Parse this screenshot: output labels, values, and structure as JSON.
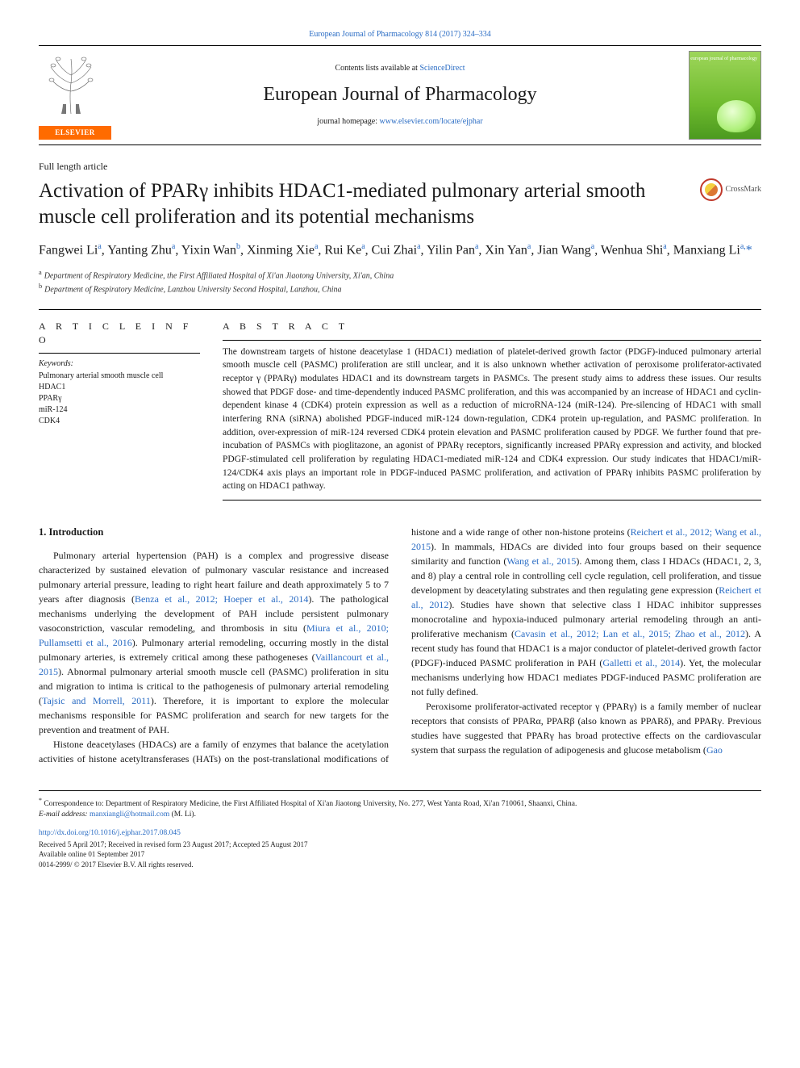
{
  "top_link": {
    "text": "European Journal of Pharmacology 814 (2017) 324–334",
    "href": "#"
  },
  "header": {
    "publisher_label": "ELSEVIER",
    "contents_line_pre": "Contents lists available at ",
    "contents_line_link": "ScienceDirect",
    "journal_name": "European Journal of Pharmacology",
    "homepage_pre": "journal homepage: ",
    "homepage_link": "www.elsevier.com/locate/ejphar",
    "cover_label": "european journal of\npharmacology"
  },
  "article": {
    "section_type": "Full length article",
    "title": "Activation of PPARγ inhibits HDAC1-mediated pulmonary arterial smooth muscle cell proliferation and its potential mechanisms",
    "crossmark_label": "CrossMark",
    "authors_html": "Fangwei Li<sup>a</sup>, Yanting Zhu<sup>a</sup>, Yixin Wan<sup>b</sup>, Xinming Xie<sup>a</sup>, Rui Ke<sup>a</sup>, Cui Zhai<sup>a</sup>, Yilin Pan<sup>a</sup>, Xin Yan<sup>a</sup>, Jian Wang<sup>a</sup>, Wenhua Shi<sup>a</sup>, Manxiang Li<sup>a,</sup><span class='corr'>*</span>",
    "affiliations": [
      {
        "sup": "a",
        "text": "Department of Respiratory Medicine, the First Affiliated Hospital of Xi'an Jiaotong University, Xi'an, China"
      },
      {
        "sup": "b",
        "text": "Department of Respiratory Medicine, Lanzhou University Second Hospital, Lanzhou, China"
      }
    ]
  },
  "info": {
    "heading": "A R T I C L E   I N F O",
    "keywords_label": "Keywords:",
    "keywords": [
      "Pulmonary arterial smooth muscle cell",
      "HDAC1",
      "PPARγ",
      "miR-124",
      "CDK4"
    ]
  },
  "abstract": {
    "heading": "A B S T R A C T",
    "text": "The downstream targets of histone deacetylase 1 (HDAC1) mediation of platelet-derived growth factor (PDGF)-induced pulmonary arterial smooth muscle cell (PASMC) proliferation are still unclear, and it is also unknown whether activation of peroxisome proliferator-activated receptor γ (PPARγ) modulates HDAC1 and its downstream targets in PASMCs. The present study aims to address these issues. Our results showed that PDGF dose- and time-dependently induced PASMC proliferation, and this was accompanied by an increase of HDAC1 and cyclin-dependent kinase 4 (CDK4) protein expression as well as a reduction of microRNA-124 (miR-124). Pre-silencing of HDAC1 with small interfering RNA (siRNA) abolished PDGF-induced miR-124 down-regulation, CDK4 protein up-regulation, and PASMC proliferation. In addition, over-expression of miR-124 reversed CDK4 protein elevation and PASMC proliferation caused by PDGF. We further found that pre-incubation of PASMCs with pioglitazone, an agonist of PPARγ receptors, significantly increased PPARγ expression and activity, and blocked PDGF-stimulated cell proliferation by regulating HDAC1-mediated miR-124 and CDK4 expression. Our study indicates that HDAC1/miR-124/CDK4 axis plays an important role in PDGF-induced PASMC proliferation, and activation of PPARγ inhibits PASMC proliferation by acting on HDAC1 pathway."
  },
  "body": {
    "intro_heading": "1. Introduction",
    "p1_pre": "Pulmonary arterial hypertension (PAH) is a complex and progressive disease characterized by sustained elevation of pulmonary vascular resistance and increased pulmonary arterial pressure, leading to right heart failure and death approximately 5 to 7 years after diagnosis (",
    "p1_c1": "Benza et al., 2012; Hoeper et al., 2014",
    "p1_mid1": "). The pathological mechanisms underlying the development of PAH include persistent pulmonary vasoconstriction, vascular remodeling, and thrombosis in situ (",
    "p1_c2": "Miura et al., 2010; Pullamsetti et al., 2016",
    "p1_mid2": "). Pulmonary arterial remodeling, occurring mostly in the distal pulmonary arteries, is extremely critical among these pathogeneses (",
    "p1_c3": "Vaillancourt et al., 2015",
    "p1_mid3": "). Abnormal pulmonary arterial smooth muscle cell (PASMC) proliferation in situ and migration to intima is critical to the pathogenesis of pulmonary arterial remodeling (",
    "p1_c4": "Tajsic and Morrell, 2011",
    "p1_post": "). Therefore, it is important to explore the molecular mechanisms responsible for PASMC proliferation and search for new targets for the prevention and treatment of PAH.",
    "p2_pre": "Histone deacetylases (HDACs) are a family of enzymes that balance the acetylation activities of histone acetyltransferases (HATs) on the post-translational modifications of histone and a wide range of other non-histone proteins (",
    "p2_c1": "Reichert et al., 2012; Wang et al., 2015",
    "p2_mid1": "). In mammals, HDACs are divided into four groups based on their sequence similarity and function (",
    "p2_c2": "Wang et al., 2015",
    "p2_mid2": "). Among them, class I HDACs (HDAC1, 2, 3, and 8) play a central role in controlling cell cycle regulation, cell proliferation, and tissue development by deacetylating substrates and then regulating gene expression (",
    "p2_c3": "Reichert et al., 2012",
    "p2_mid3": "). Studies have shown that selective class I HDAC inhibitor suppresses monocrotaline and hypoxia-induced pulmonary arterial remodeling through an anti-proliferative mechanism (",
    "p2_c4": "Cavasin et al., 2012; Lan et al., 2015; Zhao et al., 2012",
    "p2_mid4": "). A recent study has found that HDAC1 is a major conductor of platelet-derived growth factor (PDGF)-induced PASMC proliferation in PAH (",
    "p2_c5": "Galletti et al., 2014",
    "p2_post": "). Yet, the molecular mechanisms underlying how HDAC1 mediates PDGF-induced PASMC proliferation are not fully defined.",
    "p3_pre": "Peroxisome proliferator-activated receptor γ (PPARγ) is a family member of nuclear receptors that consists of PPARα, PPARβ (also known as PPARδ), and PPARγ. Previous studies have suggested that PPARγ has broad protective effects on the cardiovascular system that surpass the regulation of adipogenesis and glucose metabolism (",
    "p3_c1": "Gao"
  },
  "footer": {
    "corr_symbol": "*",
    "corr_text": " Correspondence to: Department of Respiratory Medicine, the First Affiliated Hospital of Xi'an Jiaotong University, No. 277, West Yanta Road, Xi'an 710061, Shaanxi, China.",
    "email_label": "E-mail address: ",
    "email": "manxiangli@hotmail.com",
    "email_suffix": " (M. Li).",
    "doi": "http://dx.doi.org/10.1016/j.ejphar.2017.08.045",
    "history": "Received 5 April 2017; Received in revised form 23 August 2017; Accepted 25 August 2017",
    "online": "Available online 01 September 2017",
    "copyright": "0014-2999/ © 2017 Elsevier B.V. All rights reserved."
  },
  "colors": {
    "link": "#2a6cc4",
    "elsevier_orange": "#ff6b00",
    "text": "#1a1a1a"
  }
}
